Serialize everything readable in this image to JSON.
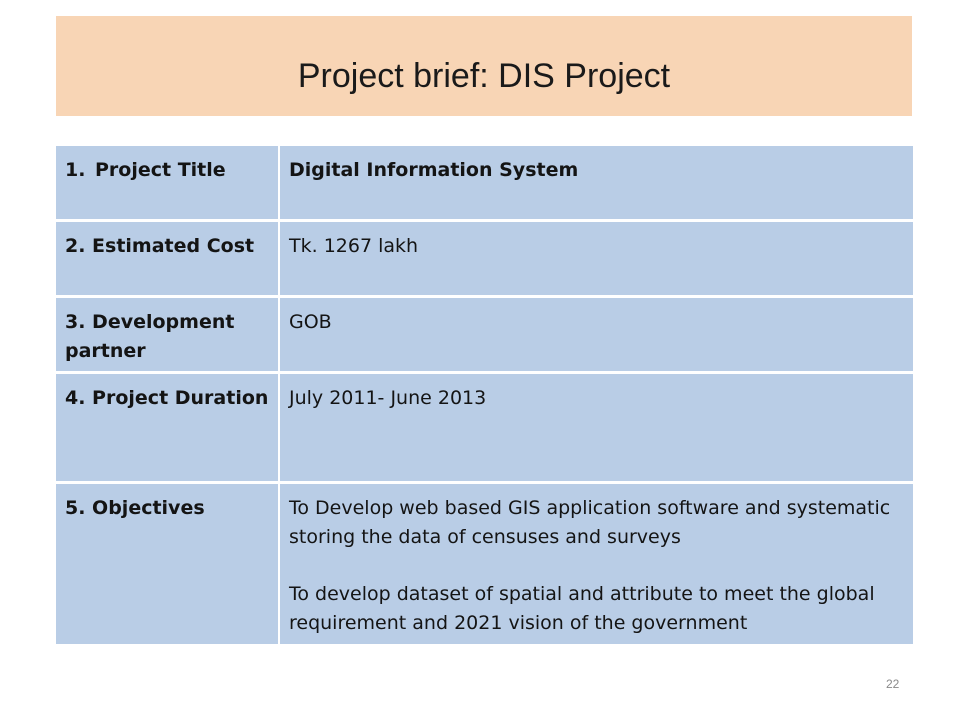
{
  "slide": {
    "title": "Project brief: DIS Project",
    "page_number": "22",
    "colors": {
      "title_banner": "#f8d5b5",
      "table_cell": "#b9cde6",
      "text": "#141414"
    }
  },
  "table": {
    "rows": [
      {
        "num": "1.",
        "label": "Project Title",
        "value": "Digital Information System"
      },
      {
        "label": "2. Estimated Cost",
        "value": "Tk. 1267 lakh"
      },
      {
        "label": "3. Development partner",
        "value": "GOB"
      },
      {
        "label": "4. Project Duration",
        "value": "July 2011- June 2013"
      },
      {
        "label": "5. Objectives",
        "objectives": [
          "To Develop web based GIS application software and systematic storing the data of censuses and surveys",
          "To develop dataset of spatial and attribute to meet the global requirement and 2021 vision of the government"
        ]
      }
    ]
  }
}
